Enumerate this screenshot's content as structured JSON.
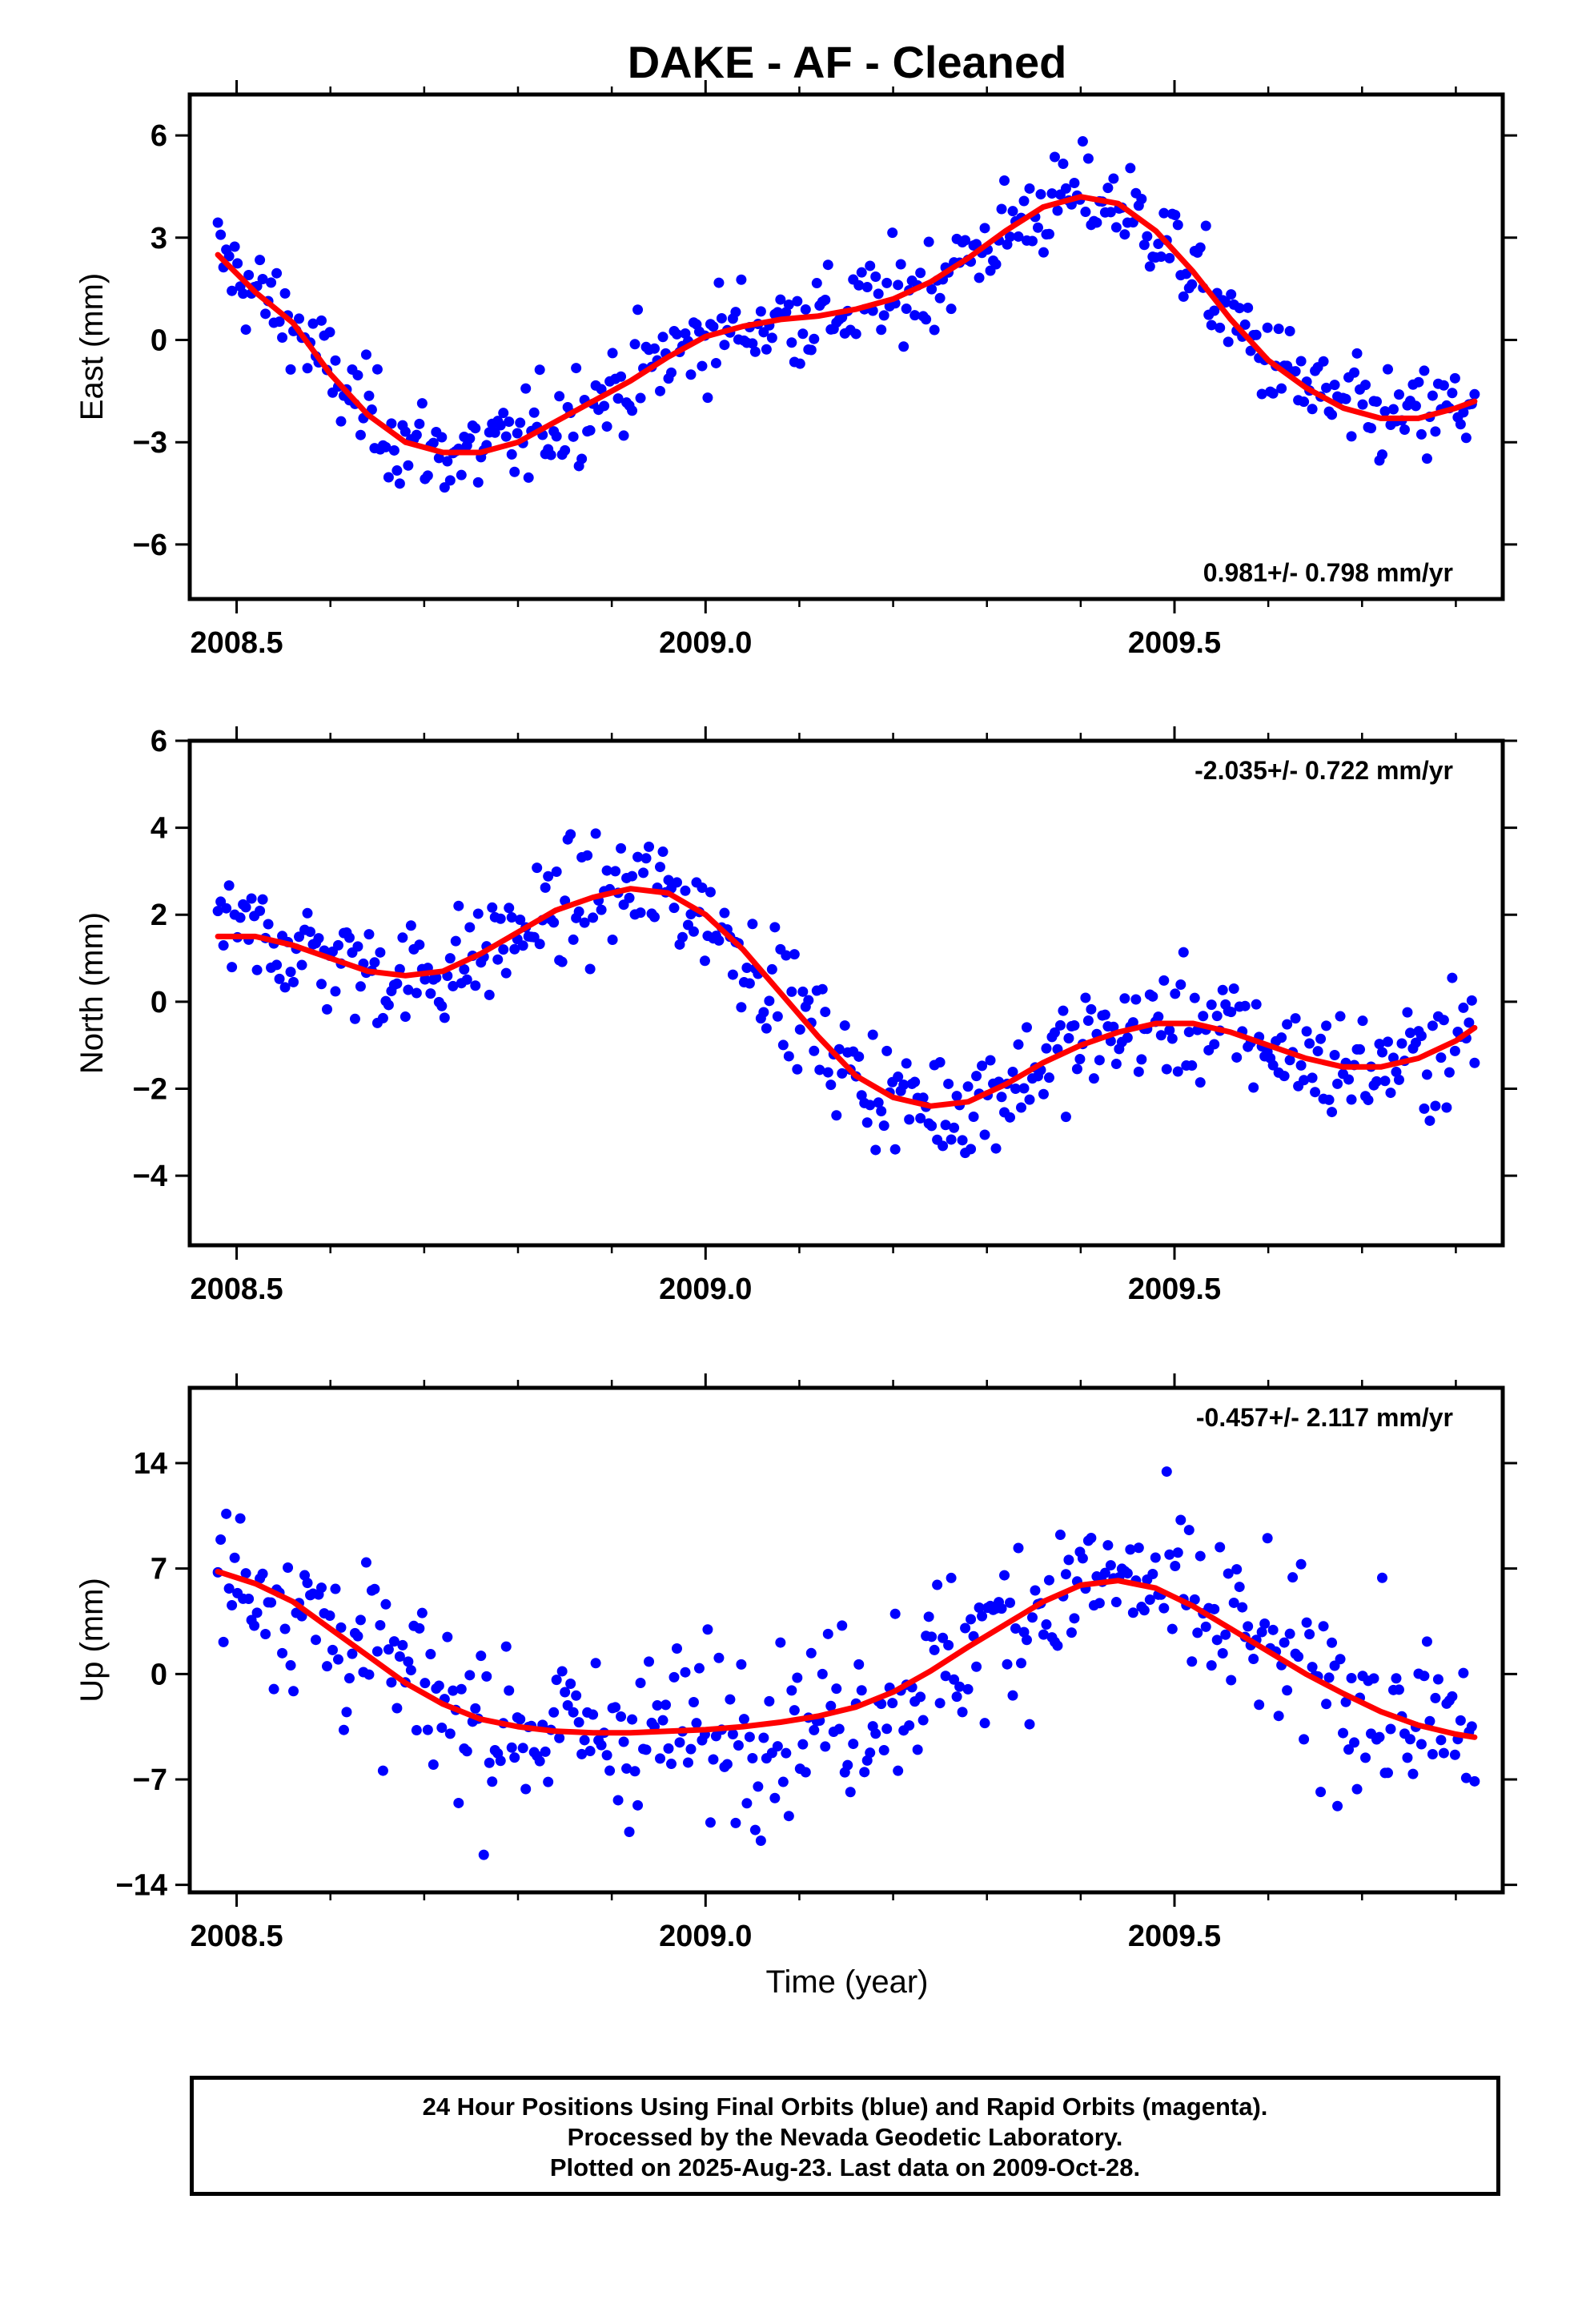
{
  "title": "DAKE  - AF - Cleaned",
  "xlabel": "Time (year)",
  "caption": [
    "24 Hour Positions Using Final Orbits (blue) and Rapid Orbits (magenta).",
    "Processed by the Nevada Geodetic Laboratory.",
    "Plotted on 2025-Aug-23. Last data on 2009-Oct-28."
  ],
  "colors": {
    "points": "#0000ff",
    "fit": "#ff0000",
    "axes": "#000000"
  },
  "chart_data": [
    {
      "type": "scatter",
      "ylabel": "East (mm)",
      "rate_label": "0.981+/- 0.798 mm/yr",
      "rate_position": "bottom-right",
      "xlim": [
        2008.45,
        2009.85
      ],
      "ylim": [
        -7.6,
        7.2
      ],
      "xticks": [
        2008.5,
        2009.0,
        2009.5
      ],
      "xtick_labels": [
        "2008.5",
        "2009.0",
        "2009.5"
      ],
      "yticks": [
        -6,
        -3,
        0,
        3,
        6
      ],
      "ytick_labels": [
        "−6",
        "−3",
        "0",
        "3",
        "6"
      ],
      "series": [
        {
          "role": "daily positions (final orbits)",
          "color": "#0000ff",
          "x": [
            2008.48,
            2008.52,
            2008.56,
            2008.6,
            2008.64,
            2008.68,
            2008.72,
            2008.76,
            2008.8,
            2008.84,
            2008.88,
            2008.92,
            2008.96,
            2009.0,
            2009.04,
            2009.08,
            2009.12,
            2009.16,
            2009.2,
            2009.24,
            2009.28,
            2009.32,
            2009.36,
            2009.4,
            2009.44,
            2009.48,
            2009.52,
            2009.56,
            2009.6,
            2009.64,
            2009.68,
            2009.72,
            2009.76,
            2009.8,
            2009.82
          ],
          "y": [
            2.5,
            1.4,
            0.5,
            -1.0,
            -2.2,
            -3.0,
            -3.3,
            -3.3,
            -3.0,
            -2.4,
            -1.8,
            -1.2,
            -0.5,
            0.1,
            0.4,
            0.6,
            0.7,
            0.9,
            1.2,
            1.7,
            2.4,
            3.2,
            3.9,
            4.2,
            4.0,
            3.2,
            2.0,
            0.6,
            -0.6,
            -1.4,
            -2.0,
            -2.3,
            -2.3,
            -2.0,
            -1.8
          ],
          "jitter_mm": 1.0
        },
        {
          "role": "model fit",
          "color": "#ff0000",
          "x": [
            2008.48,
            2008.52,
            2008.56,
            2008.6,
            2008.64,
            2008.68,
            2008.72,
            2008.76,
            2008.8,
            2008.84,
            2008.88,
            2008.92,
            2008.96,
            2009.0,
            2009.04,
            2009.08,
            2009.12,
            2009.16,
            2009.2,
            2009.24,
            2009.28,
            2009.32,
            2009.36,
            2009.4,
            2009.44,
            2009.48,
            2009.52,
            2009.56,
            2009.6,
            2009.64,
            2009.68,
            2009.72,
            2009.76,
            2009.8,
            2009.82
          ],
          "y": [
            2.5,
            1.4,
            0.5,
            -1.0,
            -2.2,
            -3.0,
            -3.3,
            -3.3,
            -3.0,
            -2.4,
            -1.8,
            -1.2,
            -0.5,
            0.1,
            0.4,
            0.6,
            0.7,
            0.9,
            1.2,
            1.7,
            2.4,
            3.2,
            3.9,
            4.2,
            4.0,
            3.2,
            2.0,
            0.6,
            -0.6,
            -1.4,
            -2.0,
            -2.3,
            -2.3,
            -2.0,
            -1.8
          ]
        }
      ]
    },
    {
      "type": "scatter",
      "ylabel": "North (mm)",
      "rate_label": "-2.035+/- 0.722 mm/yr",
      "rate_position": "top-right",
      "xlim": [
        2008.45,
        2009.85
      ],
      "ylim": [
        -5.6,
        6.0
      ],
      "xticks": [
        2008.5,
        2009.0,
        2009.5
      ],
      "xtick_labels": [
        "2008.5",
        "2009.0",
        "2009.5"
      ],
      "yticks": [
        -4,
        -2,
        0,
        2,
        4,
        6
      ],
      "ytick_labels": [
        "−4",
        "−2",
        "0",
        "2",
        "4",
        "6"
      ],
      "series": [
        {
          "role": "daily positions (final orbits)",
          "color": "#0000ff",
          "x": [
            2008.48,
            2008.52,
            2008.56,
            2008.6,
            2008.64,
            2008.68,
            2008.72,
            2008.76,
            2008.8,
            2008.84,
            2008.88,
            2008.92,
            2008.96,
            2009.0,
            2009.04,
            2009.08,
            2009.12,
            2009.16,
            2009.2,
            2009.24,
            2009.28,
            2009.32,
            2009.36,
            2009.4,
            2009.44,
            2009.48,
            2009.52,
            2009.56,
            2009.6,
            2009.64,
            2009.68,
            2009.72,
            2009.76,
            2009.8,
            2009.82
          ],
          "y": [
            1.5,
            1.5,
            1.3,
            1.0,
            0.7,
            0.6,
            0.7,
            1.1,
            1.6,
            2.1,
            2.4,
            2.6,
            2.5,
            2.0,
            1.2,
            0.2,
            -0.8,
            -1.7,
            -2.2,
            -2.4,
            -2.3,
            -1.9,
            -1.4,
            -1.0,
            -0.7,
            -0.5,
            -0.5,
            -0.7,
            -1.0,
            -1.3,
            -1.5,
            -1.5,
            -1.3,
            -0.9,
            -0.6
          ],
          "jitter_mm": 0.9
        },
        {
          "role": "model fit",
          "color": "#ff0000",
          "x": [
            2008.48,
            2008.52,
            2008.56,
            2008.6,
            2008.64,
            2008.68,
            2008.72,
            2008.76,
            2008.8,
            2008.84,
            2008.88,
            2008.92,
            2008.96,
            2009.0,
            2009.04,
            2009.08,
            2009.12,
            2009.16,
            2009.2,
            2009.24,
            2009.28,
            2009.32,
            2009.36,
            2009.4,
            2009.44,
            2009.48,
            2009.52,
            2009.56,
            2009.6,
            2009.64,
            2009.68,
            2009.72,
            2009.76,
            2009.8,
            2009.82
          ],
          "y": [
            1.5,
            1.5,
            1.3,
            1.0,
            0.7,
            0.6,
            0.7,
            1.1,
            1.6,
            2.1,
            2.4,
            2.6,
            2.5,
            2.0,
            1.2,
            0.2,
            -0.8,
            -1.7,
            -2.2,
            -2.4,
            -2.3,
            -1.9,
            -1.4,
            -1.0,
            -0.7,
            -0.5,
            -0.5,
            -0.7,
            -1.0,
            -1.3,
            -1.5,
            -1.5,
            -1.3,
            -0.9,
            -0.6
          ]
        }
      ]
    },
    {
      "type": "scatter",
      "ylabel": "Up (mm)",
      "rate_label": "-0.457+/- 2.117 mm/yr",
      "rate_position": "top-right",
      "xlim": [
        2008.45,
        2009.85
      ],
      "ylim": [
        -14.5,
        19.0
      ],
      "xticks": [
        2008.5,
        2009.0,
        2009.5
      ],
      "xtick_labels": [
        "2008.5",
        "2009.0",
        "2009.5"
      ],
      "yticks": [
        -14,
        -7,
        0,
        7,
        14
      ],
      "ytick_labels": [
        "−14",
        "−7",
        "0",
        "7",
        "14"
      ],
      "series": [
        {
          "role": "daily positions (final orbits)",
          "color": "#0000ff",
          "x": [
            2008.48,
            2008.52,
            2008.56,
            2008.6,
            2008.64,
            2008.68,
            2008.72,
            2008.76,
            2008.8,
            2008.84,
            2008.88,
            2008.92,
            2008.96,
            2009.0,
            2009.04,
            2009.08,
            2009.12,
            2009.16,
            2009.2,
            2009.24,
            2009.28,
            2009.32,
            2009.36,
            2009.4,
            2009.44,
            2009.48,
            2009.52,
            2009.56,
            2009.6,
            2009.64,
            2009.68,
            2009.72,
            2009.76,
            2009.8,
            2009.82
          ],
          "y": [
            6.8,
            6.0,
            4.8,
            3.0,
            1.2,
            -0.6,
            -2.0,
            -3.0,
            -3.5,
            -3.8,
            -3.9,
            -3.9,
            -3.8,
            -3.7,
            -3.5,
            -3.2,
            -2.8,
            -2.2,
            -1.2,
            0.2,
            1.8,
            3.3,
            4.8,
            5.9,
            6.2,
            5.7,
            4.5,
            3.0,
            1.5,
            0.0,
            -1.3,
            -2.5,
            -3.4,
            -4.0,
            -4.2
          ],
          "jitter_mm": 4.0
        },
        {
          "role": "model fit",
          "color": "#ff0000",
          "x": [
            2008.48,
            2008.52,
            2008.56,
            2008.6,
            2008.64,
            2008.68,
            2008.72,
            2008.76,
            2008.8,
            2008.84,
            2008.88,
            2008.92,
            2008.96,
            2009.0,
            2009.04,
            2009.08,
            2009.12,
            2009.16,
            2009.2,
            2009.24,
            2009.28,
            2009.32,
            2009.36,
            2009.4,
            2009.44,
            2009.48,
            2009.52,
            2009.56,
            2009.6,
            2009.64,
            2009.68,
            2009.72,
            2009.76,
            2009.8,
            2009.82
          ],
          "y": [
            6.8,
            6.0,
            4.8,
            3.0,
            1.2,
            -0.6,
            -2.0,
            -3.0,
            -3.5,
            -3.8,
            -3.9,
            -3.9,
            -3.8,
            -3.7,
            -3.5,
            -3.2,
            -2.8,
            -2.2,
            -1.2,
            0.2,
            1.8,
            3.3,
            4.8,
            5.9,
            6.2,
            5.7,
            4.5,
            3.0,
            1.5,
            0.0,
            -1.3,
            -2.5,
            -3.4,
            -4.0,
            -4.2
          ]
        }
      ]
    }
  ]
}
